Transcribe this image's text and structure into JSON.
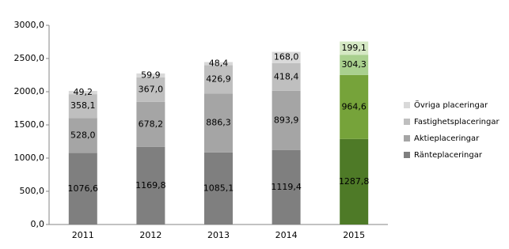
{
  "chart_data": {
    "type": "stacked_bar",
    "categories": [
      "2011",
      "2012",
      "2013",
      "2014",
      "2015"
    ],
    "series": [
      {
        "name": "Ränteplaceringar",
        "color": "#7f7f7f",
        "colors": [
          "#7f7f7f",
          "#7f7f7f",
          "#7f7f7f",
          "#7f7f7f",
          "#4e7a27"
        ],
        "values": [
          1076.6,
          1169.8,
          1085.1,
          1119.4,
          1287.8
        ],
        "value_labels": [
          "1076,6",
          "1169,8",
          "1085,1",
          "1119,4",
          "1287,8"
        ]
      },
      {
        "name": "Aktieplaceringar",
        "color": "#a5a5a5",
        "colors": [
          "#a5a5a5",
          "#a5a5a5",
          "#a5a5a5",
          "#a5a5a5",
          "#76a33a"
        ],
        "values": [
          528.0,
          678.2,
          886.3,
          893.9,
          964.6
        ],
        "value_labels": [
          "528,0",
          "678,2",
          "886,3",
          "893,9",
          "964,6"
        ]
      },
      {
        "name": "Fastighetsplaceringar",
        "color": "#bfbfbf",
        "colors": [
          "#bfbfbf",
          "#bfbfbf",
          "#bfbfbf",
          "#bfbfbf",
          "#a9d08e"
        ],
        "values": [
          358.1,
          367.0,
          426.9,
          418.4,
          304.3
        ],
        "value_labels": [
          "358,1",
          "367,0",
          "426,9",
          "418,4",
          "304,3"
        ]
      },
      {
        "name": "Övriga placeringar",
        "color": "#d9d9d9",
        "colors": [
          "#d9d9d9",
          "#d9d9d9",
          "#d9d9d9",
          "#d9d9d9",
          "#d5e8c4"
        ],
        "values": [
          49.2,
          59.9,
          48.4,
          168.0,
          199.1
        ],
        "value_labels": [
          "49,2",
          "59,9",
          "48,4",
          "168,0",
          "199,1"
        ]
      }
    ],
    "ylim": [
      0,
      3000
    ],
    "yticks": [
      {
        "value": 0,
        "label": "0,0"
      },
      {
        "value": 500,
        "label": "500,0"
      },
      {
        "value": 1000,
        "label": "1000,0"
      },
      {
        "value": 1500,
        "label": "1500,0"
      },
      {
        "value": 2000,
        "label": "2000,0"
      },
      {
        "value": 2500,
        "label": "2500,0"
      },
      {
        "value": 3000,
        "label": "3000,0"
      }
    ],
    "grid": false,
    "legend": "right"
  }
}
